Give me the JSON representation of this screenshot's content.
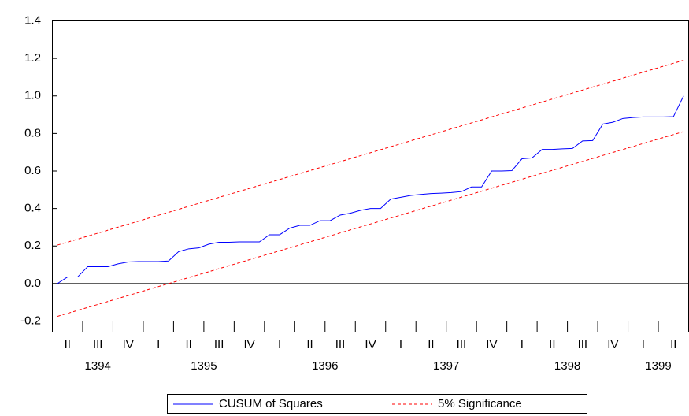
{
  "chart_data": {
    "type": "line",
    "quarter_labels": [
      "II",
      "III",
      "IV",
      "I",
      "II",
      "III",
      "IV",
      "I",
      "II",
      "III",
      "IV",
      "I",
      "II",
      "III",
      "IV",
      "I",
      "II",
      "III",
      "IV",
      "I",
      "II"
    ],
    "year_labels": [
      "1394",
      "1395",
      "1396",
      "1397",
      "1398",
      "1399"
    ],
    "ylim": [
      -0.2,
      1.4
    ],
    "yticks": [
      -0.2,
      {
        "value": 0,
        "label": "0.0"
      },
      0.2,
      0.4,
      0.6,
      0.8,
      {
        "value": 1,
        "label": "1.0"
      },
      1.2,
      1.4
    ],
    "zero_line": true,
    "series": [
      {
        "name": "CUSUM of Squares",
        "color": "#0000ff",
        "values": [
          0.0,
          0.035,
          0.035,
          0.09,
          0.09,
          0.09,
          0.105,
          0.115,
          0.117,
          0.117,
          0.117,
          0.12,
          0.17,
          0.185,
          0.19,
          0.21,
          0.22,
          0.22,
          0.222,
          0.222,
          0.222,
          0.26,
          0.26,
          0.295,
          0.31,
          0.31,
          0.335,
          0.335,
          0.365,
          0.375,
          0.39,
          0.4,
          0.4,
          0.45,
          0.46,
          0.47,
          0.475,
          0.48,
          0.482,
          0.485,
          0.49,
          0.515,
          0.515,
          0.6,
          0.6,
          0.602,
          0.665,
          0.67,
          0.715,
          0.715,
          0.718,
          0.72,
          0.76,
          0.762,
          0.85,
          0.86,
          0.88,
          0.885,
          0.888,
          0.888,
          0.888,
          0.89,
          1.0
        ]
      },
      {
        "name": "5% Significance",
        "color": "#ff0000",
        "dashed": true,
        "values": [
          0.205,
          1.19
        ],
        "lower": [
          -0.175,
          0.81
        ]
      }
    ]
  }
}
